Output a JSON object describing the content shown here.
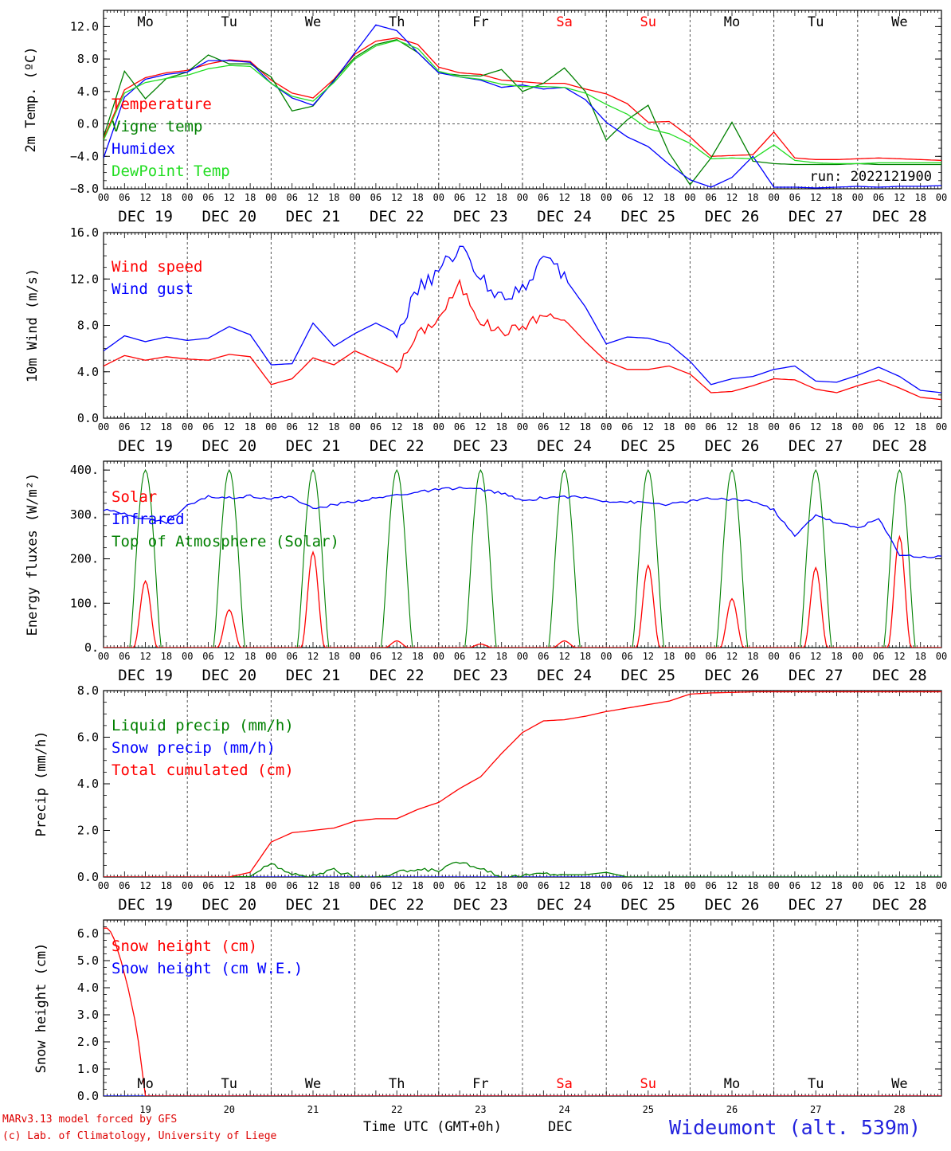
{
  "chart_data": [
    {
      "type": "line",
      "ylabel": "2m Temp. (ºC)",
      "ylim": [
        -8,
        14
      ],
      "yticks": [
        "12.0",
        "8.0",
        "4.0",
        "0.0",
        "−4.0",
        "−8.0"
      ],
      "ytick_values": [
        12,
        8,
        4,
        0,
        -4,
        -8
      ],
      "ref_line": 0,
      "run_label": "run: 2022121900",
      "series": [
        {
          "name": "Temperature",
          "color": "#ff0000",
          "x": [
            0,
            6,
            12,
            18,
            24,
            30,
            36,
            42,
            48,
            54,
            60,
            66,
            72,
            78,
            84,
            90,
            96,
            102,
            108,
            114,
            120,
            126,
            132,
            138,
            144,
            150,
            156,
            162,
            168,
            174,
            180,
            186,
            192,
            198,
            204,
            210,
            216,
            222,
            228,
            234,
            240
          ],
          "y": [
            -1.8,
            4.2,
            5.7,
            6.3,
            6.6,
            7.4,
            7.9,
            7.7,
            5.4,
            3.8,
            3.2,
            5.5,
            8.6,
            10.2,
            10.6,
            9.8,
            7.0,
            6.3,
            6.1,
            5.4,
            5.2,
            5.0,
            5.0,
            4.3,
            3.7,
            2.5,
            0.2,
            0.3,
            -1.6,
            -4.0,
            -3.9,
            -3.8,
            -1.0,
            -4.2,
            -4.4,
            -4.4,
            -4.3,
            -4.2,
            -4.3,
            -4.4,
            -4.5
          ]
        },
        {
          "name": "Vigne temp",
          "color": "#008000",
          "x": [
            0,
            6,
            12,
            18,
            24,
            30,
            36,
            42,
            48,
            54,
            60,
            66,
            72,
            78,
            84,
            90,
            96,
            102,
            108,
            114,
            120,
            126,
            132,
            138,
            144,
            150,
            156,
            162,
            168,
            174,
            180,
            186,
            192,
            198,
            204,
            210,
            216,
            222,
            228,
            234,
            240
          ],
          "y": [
            -1.6,
            6.5,
            3.1,
            5.6,
            6.4,
            8.5,
            7.4,
            7.4,
            5.8,
            1.6,
            2.2,
            5.4,
            8.2,
            9.8,
            10.4,
            8.8,
            6.3,
            6.0,
            5.9,
            6.7,
            4.0,
            5.0,
            6.9,
            4.0,
            -2.0,
            0.5,
            2.3,
            -3.6,
            -7.5,
            -4.2,
            0.2,
            -4.6,
            -4.9,
            -5.0,
            -5.0,
            -5.0,
            -4.9,
            -5.0,
            -5.0,
            -5.0,
            -5.0
          ]
        },
        {
          "name": "Humidex",
          "color": "#0000ff",
          "x": [
            0,
            6,
            12,
            18,
            24,
            30,
            36,
            42,
            48,
            54,
            60,
            66,
            72,
            78,
            84,
            90,
            96,
            102,
            108,
            114,
            120,
            126,
            132,
            138,
            144,
            150,
            156,
            162,
            168,
            174,
            180,
            186,
            192,
            198,
            204,
            210,
            216,
            222,
            228,
            234,
            240
          ],
          "y": [
            -4.2,
            3.3,
            5.5,
            6.1,
            6.4,
            7.8,
            7.8,
            7.6,
            5.0,
            3.2,
            2.3,
            5.3,
            8.8,
            12.2,
            11.5,
            8.8,
            6.3,
            5.8,
            5.4,
            4.5,
            4.8,
            4.3,
            4.5,
            3.0,
            0.2,
            -1.6,
            -2.8,
            -5.0,
            -6.9,
            -7.8,
            -6.6,
            -4.0,
            -7.8,
            -7.8,
            -7.9,
            -7.8,
            -7.7,
            -7.8,
            -7.7,
            -7.7,
            -7.6
          ]
        },
        {
          "name": "DewPoint Temp",
          "color": "#22dd22",
          "x": [
            0,
            6,
            12,
            18,
            24,
            30,
            36,
            42,
            48,
            54,
            60,
            66,
            72,
            78,
            84,
            90,
            96,
            102,
            108,
            114,
            120,
            126,
            132,
            138,
            144,
            150,
            156,
            162,
            168,
            174,
            180,
            186,
            192,
            198,
            204,
            210,
            216,
            222,
            228,
            234,
            240
          ],
          "y": [
            -2.0,
            3.8,
            5.1,
            5.6,
            6.0,
            6.8,
            7.2,
            7.1,
            5.0,
            3.4,
            2.8,
            5.1,
            8.0,
            9.6,
            10.3,
            9.3,
            6.5,
            5.8,
            5.5,
            4.9,
            4.6,
            4.6,
            4.5,
            3.8,
            2.4,
            1.2,
            -0.6,
            -1.2,
            -2.4,
            -4.3,
            -4.2,
            -4.3,
            -2.6,
            -4.5,
            -4.8,
            -4.9,
            -4.9,
            -4.8,
            -4.8,
            -4.8,
            -4.8
          ]
        }
      ]
    },
    {
      "type": "line",
      "ylabel": "10m Wind (m/s)",
      "ylim": [
        0,
        16
      ],
      "yticks": [
        "16.0",
        "12.0",
        "8.0",
        "4.0",
        "0.0"
      ],
      "ytick_values": [
        16,
        12,
        8,
        4,
        0
      ],
      "ref_line": 5,
      "series": [
        {
          "name": "Wind speed",
          "color": "#ff0000",
          "x": [
            0,
            6,
            12,
            18,
            24,
            30,
            36,
            42,
            48,
            54,
            60,
            66,
            72,
            78,
            84,
            90,
            96,
            102,
            108,
            114,
            120,
            126,
            132,
            138,
            144,
            150,
            156,
            162,
            168,
            174,
            180,
            186,
            192,
            198,
            204,
            210,
            216,
            222,
            228,
            234,
            240
          ],
          "y": [
            4.5,
            5.4,
            5.0,
            5.3,
            5.1,
            5.0,
            5.5,
            5.3,
            2.9,
            3.4,
            5.2,
            4.6,
            5.8,
            5.0,
            4.2,
            7.2,
            8.6,
            11.5,
            8.4,
            7.4,
            7.9,
            8.9,
            8.5,
            6.6,
            4.9,
            4.2,
            4.2,
            4.5,
            3.8,
            2.2,
            2.3,
            2.8,
            3.4,
            3.3,
            2.5,
            2.2,
            2.8,
            3.3,
            2.6,
            1.8,
            1.6
          ]
        },
        {
          "name": "Wind gust",
          "color": "#0000ff",
          "x": [
            0,
            6,
            12,
            18,
            24,
            30,
            36,
            42,
            48,
            54,
            60,
            66,
            72,
            78,
            84,
            90,
            96,
            102,
            108,
            114,
            120,
            126,
            132,
            138,
            144,
            150,
            156,
            162,
            168,
            174,
            180,
            186,
            192,
            198,
            204,
            210,
            216,
            222,
            228,
            234,
            240
          ],
          "y": [
            5.8,
            7.1,
            6.6,
            7.0,
            6.7,
            6.9,
            7.9,
            7.2,
            4.6,
            4.7,
            8.2,
            6.2,
            7.3,
            8.2,
            7.3,
            11.0,
            12.6,
            14.8,
            12.0,
            10.5,
            11.3,
            13.8,
            12.1,
            9.6,
            6.4,
            7.0,
            6.9,
            6.4,
            4.9,
            2.9,
            3.4,
            3.6,
            4.2,
            4.5,
            3.2,
            3.1,
            3.7,
            4.4,
            3.6,
            2.4,
            2.2
          ]
        }
      ]
    },
    {
      "type": "line",
      "ylabel": "Energy fluxes (W/m²)",
      "ylim": [
        0,
        420
      ],
      "yticks": [
        "400.",
        "300.",
        "200.",
        "100.",
        "0."
      ],
      "ytick_values": [
        400,
        300,
        200,
        100,
        0
      ],
      "solar_peaks": [
        150,
        85,
        215,
        15,
        8,
        15,
        185,
        110,
        180,
        250
      ],
      "toa_peak": 400,
      "series": [
        {
          "name": "Solar",
          "color": "#ff0000"
        },
        {
          "name": "Infrared",
          "color": "#0000ff",
          "x": [
            0,
            6,
            12,
            18,
            24,
            30,
            36,
            42,
            48,
            54,
            60,
            66,
            72,
            78,
            84,
            90,
            96,
            102,
            108,
            114,
            120,
            126,
            132,
            138,
            144,
            150,
            156,
            162,
            168,
            174,
            180,
            186,
            192,
            198,
            204,
            210,
            216,
            222,
            228,
            234,
            240
          ],
          "y": [
            310,
            302,
            290,
            282,
            320,
            340,
            338,
            342,
            336,
            340,
            312,
            322,
            330,
            336,
            344,
            350,
            356,
            360,
            356,
            348,
            330,
            338,
            340,
            338,
            330,
            328,
            326,
            322,
            330,
            336,
            334,
            330,
            310,
            250,
            300,
            280,
            270,
            290,
            210,
            204,
            205
          ]
        },
        {
          "name": "Top of Atmosphere (Solar)",
          "color": "#008000"
        }
      ]
    },
    {
      "type": "line",
      "ylabel": "Precip (mm/h)",
      "ylim": [
        0,
        8
      ],
      "yticks": [
        "8.0",
        "6.0",
        "4.0",
        "2.0",
        "0.0"
      ],
      "ytick_values": [
        8,
        6,
        4,
        2,
        0
      ],
      "series": [
        {
          "name": "Liquid precip (mm/h)",
          "color": "#008000",
          "x": [
            0,
            6,
            12,
            18,
            24,
            30,
            36,
            42,
            48,
            54,
            60,
            66,
            72,
            78,
            84,
            90,
            96,
            102,
            108,
            114,
            120,
            126,
            132,
            138,
            144,
            150,
            156,
            162,
            168,
            174,
            180,
            186,
            192,
            198,
            204,
            210,
            216,
            222,
            228,
            234,
            240
          ],
          "y": [
            0,
            0,
            0,
            0,
            0,
            0,
            0,
            0.02,
            0.6,
            0.1,
            0.05,
            0.3,
            0,
            0,
            0.2,
            0.3,
            0.3,
            0.65,
            0.4,
            0,
            0.05,
            0.15,
            0.1,
            0.1,
            0.2,
            0,
            0,
            0,
            0,
            0,
            0,
            0,
            0,
            0,
            0,
            0,
            0,
            0,
            0,
            0,
            0
          ]
        },
        {
          "name": "Snow precip (mm/h)",
          "color": "#0000ff",
          "x": [
            0,
            240
          ],
          "y": [
            0,
            0
          ]
        },
        {
          "name": "Total cumulated (cm)",
          "color": "#ff0000",
          "x": [
            0,
            6,
            12,
            18,
            24,
            30,
            36,
            42,
            48,
            54,
            60,
            66,
            72,
            78,
            84,
            90,
            96,
            102,
            108,
            114,
            120,
            126,
            132,
            138,
            144,
            150,
            156,
            162,
            168,
            174,
            180,
            186,
            192,
            198,
            204,
            210,
            216,
            222,
            228,
            234,
            240
          ],
          "y": [
            0,
            0,
            0,
            0,
            0,
            0,
            0,
            0.2,
            1.5,
            1.9,
            2.0,
            2.1,
            2.4,
            2.5,
            2.5,
            2.9,
            3.2,
            3.8,
            4.3,
            5.3,
            6.2,
            6.7,
            6.75,
            6.9,
            7.1,
            7.25,
            7.4,
            7.55,
            7.85,
            7.9,
            7.92,
            7.95,
            7.95,
            7.95,
            7.95,
            7.95,
            7.95,
            7.95,
            7.95,
            7.95,
            7.95
          ]
        }
      ]
    },
    {
      "type": "line",
      "ylabel": "Snow height (cm)",
      "ylim": [
        0,
        6.5
      ],
      "yticks": [
        "6.0",
        "5.0",
        "4.0",
        "3.0",
        "2.0",
        "1.0",
        "0.0"
      ],
      "ytick_values": [
        6,
        5,
        4,
        3,
        2,
        1,
        0
      ],
      "series": [
        {
          "name": "Snow height (cm)",
          "color": "#ff0000",
          "x": [
            0,
            1.5,
            3,
            5,
            7,
            9,
            10,
            11,
            12,
            240
          ],
          "y": [
            6.2,
            6.2,
            5.8,
            5.0,
            4.0,
            2.8,
            2.0,
            1.0,
            0,
            0
          ]
        },
        {
          "name": "Snow height (cm W.E.)",
          "color": "#0000ff",
          "x": [
            0,
            240
          ],
          "y": [
            0,
            0
          ]
        }
      ]
    }
  ],
  "x_axis": {
    "hour_labels": [
      "00",
      "06",
      "12",
      "18"
    ],
    "end_label": "00",
    "date_labels": [
      "DEC 19",
      "DEC 20",
      "DEC 21",
      "DEC 22",
      "DEC 23",
      "DEC 24",
      "DEC 25",
      "DEC 26",
      "DEC 27",
      "DEC 28"
    ],
    "day_names": [
      "Mo",
      "Tu",
      "We",
      "Th",
      "Fr",
      "Sa",
      "Su",
      "Mo",
      "Tu",
      "We"
    ],
    "weekend_color": "#ff0000",
    "day_numbers": [
      "19",
      "20",
      "21",
      "22",
      "23",
      "24",
      "25",
      "26",
      "27",
      "28"
    ],
    "title": "Time UTC (GMT+0h)",
    "month": "DEC"
  },
  "footer": {
    "credit_line1": "MARv3.13 model forced by GFS",
    "credit_line2": "(c) Lab. of Climatology, University of Liege",
    "station": "Wideumont (alt. 539m)",
    "station_color": "#2222dd"
  }
}
